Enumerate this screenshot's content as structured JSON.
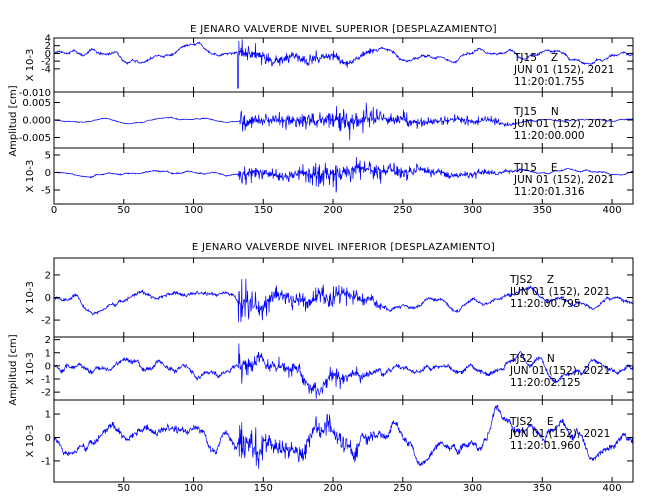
{
  "chart_data": [
    {
      "type": "line",
      "title": "E JENARO VALVERDE NIVEL SUPERIOR [DESPLAZAMIENTO]",
      "xlim": [
        0,
        415
      ],
      "xticks": [
        0,
        50,
        100,
        150,
        200,
        250,
        300,
        350,
        400
      ],
      "series_color": "#0000ff",
      "panels": [
        {
          "name": "TJ15 Z",
          "station": "TJ15",
          "component": "Z",
          "date": "JUN 01 (152), 2021",
          "time": "11:20:01.755",
          "ylabel": "X 10-3",
          "ylim": [
            -10,
            4
          ],
          "yticks": [
            4,
            2,
            0,
            -2,
            -4
          ],
          "ytick_labels": [
            "4",
            "2",
            "0",
            "-2",
            "-4"
          ],
          "event_onset": 132,
          "noise_level": 0.7,
          "peak_amplitude": 4.5,
          "y_min_value": -10,
          "min_tick_label": "-0.010"
        },
        {
          "name": "TJ15 N",
          "station": "TJ15",
          "component": "N",
          "date": "JUN 01 (152), 2021",
          "time": "11:20:00.000",
          "ylabel": "",
          "ylim": [
            -0.008,
            0.008
          ],
          "yticks": [
            0.005,
            0.0,
            -0.005
          ],
          "ytick_labels": [
            "0.005",
            "0.000",
            "-0.005"
          ],
          "event_onset": 133,
          "noise_level": 0.0003,
          "peak_amplitude": 0.0065
        },
        {
          "name": "TJ15 E",
          "station": "TJ15",
          "component": "E",
          "date": "JUN 01 (152), 2021",
          "time": "11:20:01.316",
          "ylabel": "X 10-3",
          "ylim": [
            -9,
            7
          ],
          "yticks": [
            5,
            0,
            -5
          ],
          "ytick_labels": [
            "5",
            "0",
            "-5"
          ],
          "event_onset": 132,
          "noise_level": 0.4,
          "peak_amplitude": 6.5
        }
      ],
      "shared_ylabel": "Amplitud [cm]"
    },
    {
      "type": "line",
      "title": "E JENARO VALVERDE NIVEL INFERIOR [DESPLAZAMIENTO]",
      "xlim": [
        0,
        415
      ],
      "xticks": [
        50,
        100,
        150,
        200,
        250,
        300,
        350,
        400
      ],
      "series_color": "#0000ff",
      "panels": [
        {
          "name": "TJS2 Z",
          "station": "TJS2",
          "component": "Z",
          "date": "JUN 01 (152), 2021",
          "time": "11:20:00.795",
          "ylabel": "X 10-3",
          "ylim": [
            -3.5,
            3.5
          ],
          "yticks": [
            2,
            0,
            -2
          ],
          "ytick_labels": [
            "2",
            "0",
            "-2"
          ],
          "event_onset": 132,
          "noise_level": 0.35,
          "peak_amplitude": 3
        },
        {
          "name": "TJS2 N",
          "station": "TJS2",
          "component": "N",
          "date": "JUN 01 (152), 2021",
          "time": "11:20:02.125",
          "ylabel": "X 10-3",
          "ylim": [
            -2.6,
            2.2
          ],
          "yticks": [
            2,
            1,
            0,
            -1,
            -2
          ],
          "ytick_labels": [
            "2",
            "1",
            "0",
            "-1",
            "-2"
          ],
          "event_onset": 132,
          "noise_level": 0.4,
          "peak_amplitude": 2
        },
        {
          "name": "TJS2 E",
          "station": "TJS2",
          "component": "E",
          "date": "JUN 01 (152), 2021",
          "time": "11:20:01.960",
          "ylabel": "X 10-3",
          "ylim": [
            -1.9,
            1.6
          ],
          "yticks": [
            1,
            0,
            -1
          ],
          "ytick_labels": [
            "1",
            "0",
            "-1"
          ],
          "event_onset": 132,
          "noise_level": 0.35,
          "peak_amplitude": 1.5
        }
      ],
      "shared_ylabel": "Amplitud [cm]"
    }
  ]
}
